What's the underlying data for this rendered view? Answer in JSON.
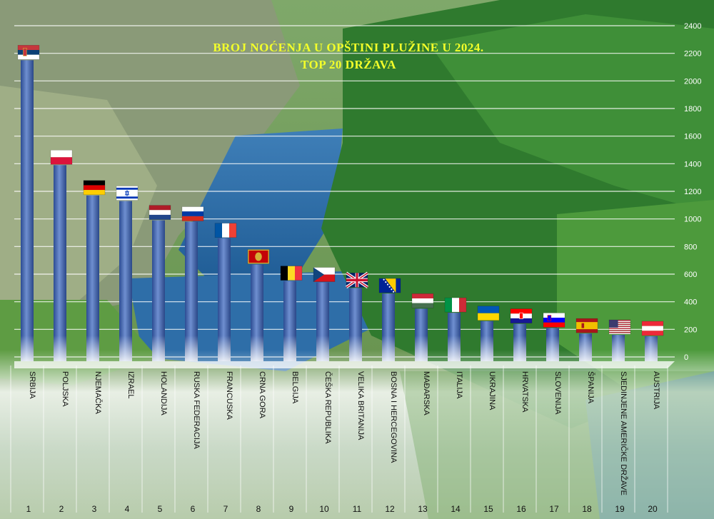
{
  "chart_data": {
    "type": "bar",
    "title": "BROJ NOĆENJA U OPŠTINI PLUŽINE U 2024.",
    "subtitle": "TOP 20 DRŽAVA",
    "xlabel": "",
    "ylabel": "",
    "ylim": [
      0,
      2400
    ],
    "yticks": [
      0,
      200,
      400,
      600,
      800,
      1000,
      1200,
      1400,
      1600,
      1800,
      2000,
      2200,
      2400
    ],
    "grid": true,
    "categories": [
      "SRBIJA",
      "POLJSKA",
      "NJEMAČKA",
      "IZRAEL",
      "HOLANDIJA",
      "RUSKA FEDERACIJA",
      "FRANCUSKA",
      "CRNA GORA",
      "BELGIJA",
      "ČEŠKA REPUBLIKA",
      "VELIKA BRITANIJA",
      "BOSNA I HERCEGOVINA",
      "MAĐARSKA",
      "ITALIJA",
      "UKRAJINA",
      "HRVATSKA",
      "SLOVENIJA",
      "ŠPANIJA",
      "SJEDINJENE AMERIČKE DRŽAVE",
      "AUSTRIJA"
    ],
    "ranks": [
      "1",
      "2",
      "3",
      "4",
      "5",
      "6",
      "7",
      "8",
      "9",
      "10",
      "11",
      "12",
      "13",
      "14",
      "15",
      "16",
      "17",
      "18",
      "19",
      "20"
    ],
    "values": [
      2150,
      1390,
      1170,
      1130,
      990,
      980,
      860,
      670,
      550,
      540,
      500,
      460,
      350,
      320,
      260,
      240,
      210,
      170,
      160,
      150
    ],
    "flags": [
      "serbia-flag",
      "poland-flag",
      "germany-flag",
      "israel-flag",
      "netherlands-flag",
      "russia-flag",
      "france-flag",
      "montenegro-flag",
      "belgium-flag",
      "czechia-flag",
      "uk-flag",
      "bosnia-flag",
      "hungary-flag",
      "italy-flag",
      "ukraine-flag",
      "croatia-flag",
      "slovenia-flag",
      "spain-flag",
      "usa-flag",
      "austria-flag"
    ],
    "colors": {
      "bar": "#3d5fa8",
      "bar_highlight": "#6f8fd0",
      "title": "#f3ff2a",
      "grid": "#ffffff"
    }
  }
}
